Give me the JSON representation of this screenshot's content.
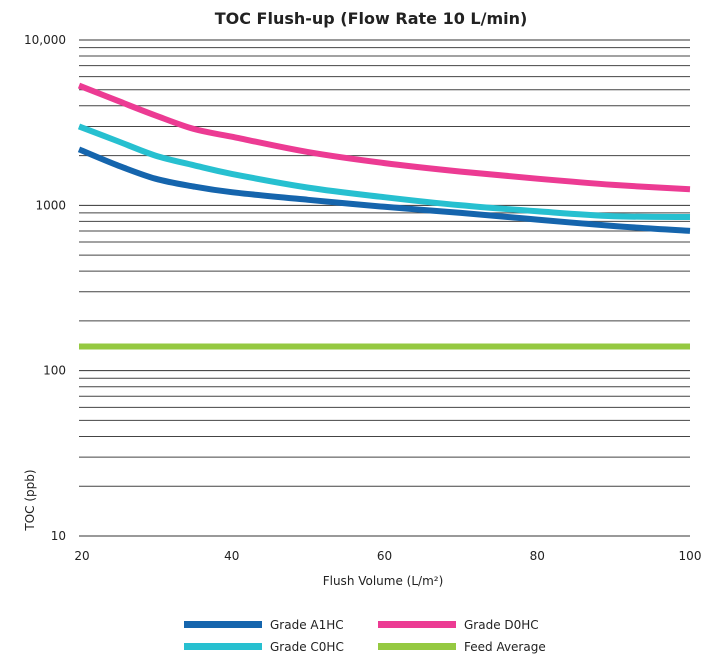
{
  "chart_data": {
    "type": "line",
    "title": "TOC Flush-up (Flow Rate 10 L/min)",
    "xlabel": "Flush Volume (L/m²)",
    "ylabel": "TOC (ppb)",
    "xlim": [
      20,
      100
    ],
    "ylim": [
      10,
      10000
    ],
    "yscale": "log",
    "grid": true,
    "legend_position": "bottom",
    "x_ticks": [
      20,
      40,
      60,
      80,
      100
    ],
    "x_tick_labels": [
      "20",
      "40",
      "60",
      "80",
      "100"
    ],
    "y_ticks": [
      10,
      100,
      1000,
      10000
    ],
    "y_tick_labels": [
      "10",
      "100",
      "1000",
      "10,000"
    ],
    "series": [
      {
        "name": "Grade A1HC",
        "color": "#1565ad",
        "x": [
          20,
          25,
          30,
          35,
          40,
          50,
          60,
          70,
          80,
          90,
          100
        ],
        "y": [
          2180,
          1750,
          1450,
          1300,
          1200,
          1080,
          980,
          900,
          820,
          750,
          700
        ]
      },
      {
        "name": "Grade D0HC",
        "color": "#ec3b93",
        "x": [
          20,
          25,
          30,
          35,
          40,
          50,
          60,
          70,
          80,
          90,
          100
        ],
        "y": [
          5300,
          4300,
          3500,
          2900,
          2600,
          2100,
          1800,
          1600,
          1450,
          1330,
          1250
        ]
      },
      {
        "name": "Grade C0HC",
        "color": "#27c0d0",
        "x": [
          20,
          25,
          30,
          35,
          40,
          50,
          60,
          70,
          80,
          90,
          100
        ],
        "y": [
          3000,
          2450,
          2000,
          1750,
          1550,
          1280,
          1120,
          1000,
          920,
          860,
          850
        ]
      },
      {
        "name": "Feed Average",
        "color": "#95c941",
        "x": [
          20,
          100
        ],
        "y": [
          140,
          140
        ]
      }
    ]
  }
}
